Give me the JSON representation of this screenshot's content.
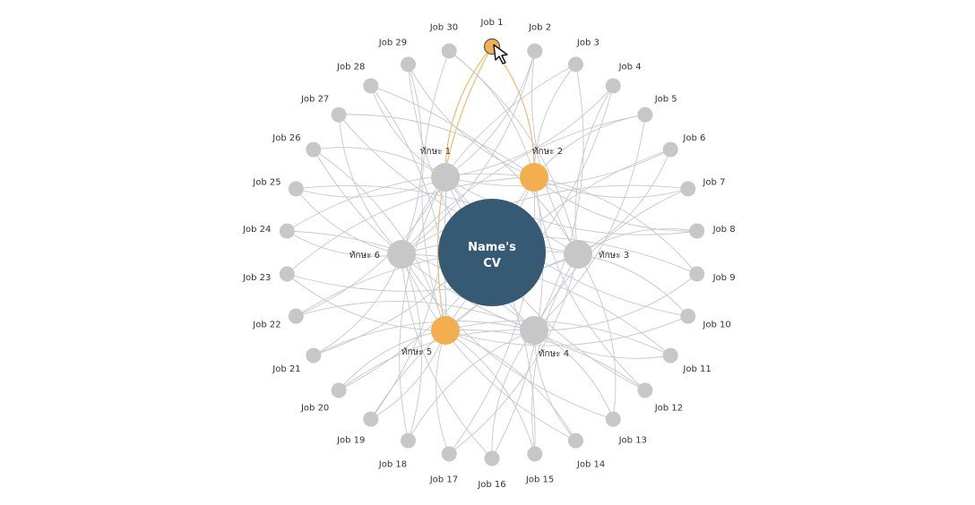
{
  "center": {
    "line1": "Name's",
    "line2": "CV"
  },
  "skills": [
    {
      "id": 1,
      "label": "ทักษะ 1",
      "highlighted": false
    },
    {
      "id": 2,
      "label": "ทักษะ 2",
      "highlighted": true
    },
    {
      "id": 3,
      "label": "ทักษะ 3",
      "highlighted": false
    },
    {
      "id": 4,
      "label": "ทักษะ 4",
      "highlighted": false
    },
    {
      "id": 5,
      "label": "ทักษะ 5",
      "highlighted": true
    },
    {
      "id": 6,
      "label": "ทักษะ 6",
      "highlighted": false
    }
  ],
  "jobs": [
    {
      "id": 1,
      "label": "Job 1",
      "selected": true
    },
    {
      "id": 2,
      "label": "Job 2"
    },
    {
      "id": 3,
      "label": "Job 3"
    },
    {
      "id": 4,
      "label": "Job 4"
    },
    {
      "id": 5,
      "label": "Job 5"
    },
    {
      "id": 6,
      "label": "Job 6"
    },
    {
      "id": 7,
      "label": "Job 7"
    },
    {
      "id": 8,
      "label": "Job 8"
    },
    {
      "id": 9,
      "label": "Job 9"
    },
    {
      "id": 10,
      "label": "Job 10"
    },
    {
      "id": 11,
      "label": "Job 11"
    },
    {
      "id": 12,
      "label": "Job 12"
    },
    {
      "id": 13,
      "label": "Job 13"
    },
    {
      "id": 14,
      "label": "Job 14"
    },
    {
      "id": 15,
      "label": "Job 15"
    },
    {
      "id": 16,
      "label": "Job 16"
    },
    {
      "id": 17,
      "label": "Job 17"
    },
    {
      "id": 18,
      "label": "Job 18"
    },
    {
      "id": 19,
      "label": "Job 19"
    },
    {
      "id": 20,
      "label": "Job 20"
    },
    {
      "id": 21,
      "label": "Job 21"
    },
    {
      "id": 22,
      "label": "Job 22"
    },
    {
      "id": 23,
      "label": "Job 23"
    },
    {
      "id": 24,
      "label": "Job 24"
    },
    {
      "id": 25,
      "label": "Job 25"
    },
    {
      "id": 26,
      "label": "Job 26"
    },
    {
      "id": 27,
      "label": "Job 27"
    },
    {
      "id": 28,
      "label": "Job 28"
    },
    {
      "id": 29,
      "label": "Job 29"
    },
    {
      "id": 30,
      "label": "Job 30"
    }
  ],
  "links": [
    [
      1,
      1
    ],
    [
      1,
      2
    ],
    [
      1,
      5
    ],
    [
      2,
      1
    ],
    [
      2,
      3
    ],
    [
      2,
      6
    ],
    [
      3,
      2
    ],
    [
      3,
      4
    ],
    [
      3,
      6
    ],
    [
      4,
      1
    ],
    [
      4,
      3
    ],
    [
      4,
      5
    ],
    [
      5,
      2
    ],
    [
      5,
      4
    ],
    [
      5,
      6
    ],
    [
      6,
      3
    ],
    [
      6,
      5
    ],
    [
      6,
      1
    ],
    [
      7,
      6
    ],
    [
      7,
      2
    ],
    [
      7,
      4
    ],
    [
      8,
      1
    ],
    [
      8,
      3
    ],
    [
      8,
      2
    ],
    [
      9,
      2
    ],
    [
      9,
      4
    ],
    [
      9,
      6
    ],
    [
      10,
      5
    ],
    [
      10,
      3
    ],
    [
      10,
      1
    ],
    [
      11,
      6
    ],
    [
      11,
      4
    ],
    [
      11,
      5
    ],
    [
      12,
      2
    ],
    [
      12,
      5
    ],
    [
      12,
      1
    ],
    [
      13,
      3
    ],
    [
      13,
      6
    ],
    [
      13,
      4
    ],
    [
      14,
      4
    ],
    [
      14,
      5
    ],
    [
      14,
      6
    ],
    [
      15,
      1
    ],
    [
      15,
      3
    ],
    [
      15,
      5
    ],
    [
      16,
      6
    ],
    [
      16,
      2
    ],
    [
      16,
      4
    ],
    [
      17,
      3
    ],
    [
      17,
      5
    ],
    [
      17,
      2
    ],
    [
      18,
      4
    ],
    [
      18,
      6
    ],
    [
      18,
      1
    ],
    [
      19,
      1
    ],
    [
      19,
      3
    ],
    [
      19,
      5
    ],
    [
      20,
      5
    ],
    [
      20,
      2
    ],
    [
      20,
      4
    ],
    [
      21,
      6
    ],
    [
      21,
      4
    ],
    [
      21,
      2
    ],
    [
      22,
      3
    ],
    [
      22,
      1
    ],
    [
      22,
      4
    ],
    [
      23,
      5
    ],
    [
      23,
      2
    ],
    [
      23,
      3
    ],
    [
      24,
      2
    ],
    [
      24,
      6
    ],
    [
      24,
      4
    ],
    [
      25,
      1
    ],
    [
      25,
      3
    ],
    [
      25,
      6
    ],
    [
      26,
      5
    ],
    [
      26,
      4
    ],
    [
      26,
      1
    ],
    [
      27,
      6
    ],
    [
      27,
      2
    ],
    [
      27,
      3
    ],
    [
      28,
      3
    ],
    [
      28,
      1
    ],
    [
      28,
      5
    ],
    [
      29,
      4
    ],
    [
      29,
      6
    ],
    [
      29,
      2
    ],
    [
      30,
      2
    ],
    [
      30,
      5
    ],
    [
      30,
      3
    ]
  ],
  "colors": {
    "center": "#365a74",
    "node": "#c7c7c7",
    "highlight": "#f3ae4f",
    "edge": "#c3c8cf",
    "edge_highlight": "#f3b65d"
  },
  "icons": {
    "cursor": "arrow-pointer-icon"
  }
}
